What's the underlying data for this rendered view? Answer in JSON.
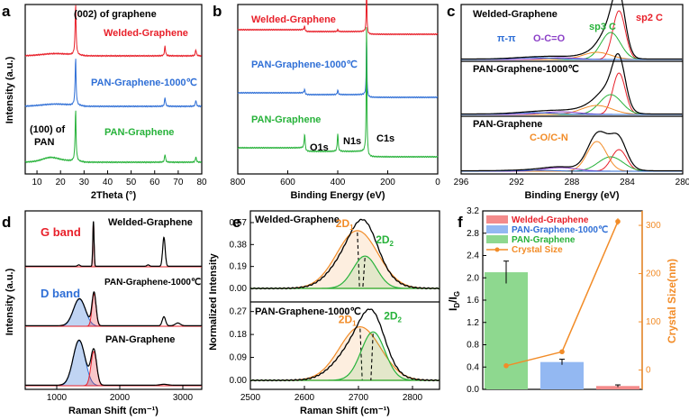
{
  "chart_data": [
    {
      "panel": "a",
      "type": "line",
      "xlabel": "2Theta (°)",
      "ylabel": "Intensity (a.u.)",
      "xlim": [
        5,
        80
      ],
      "xticks": [
        10,
        20,
        30,
        40,
        50,
        60,
        70,
        80
      ],
      "series": [
        {
          "name": "Welded-Graphene",
          "color": "#e8202a"
        },
        {
          "name": "PAN-Graphene-1000℃",
          "color": "#2f6fd6"
        },
        {
          "name": "PAN-Graphene",
          "color": "#27b23a"
        }
      ],
      "peaks_deg": [
        26.4,
        64.4,
        77.5
      ],
      "annotations": [
        "(002) of graphene",
        "(100) of",
        "PAN"
      ]
    },
    {
      "panel": "b",
      "type": "line",
      "xlabel": "Binding Energy (eV)",
      "xlim": [
        800,
        0
      ],
      "xticks": [
        800,
        600,
        400,
        200,
        0
      ],
      "series": [
        {
          "name": "Welded-Graphene",
          "color": "#e8202a"
        },
        {
          "name": "PAN-Graphene-1000℃",
          "color": "#2f6fd6"
        },
        {
          "name": "PAN-Graphene",
          "color": "#27b23a"
        }
      ],
      "peaks_ev": {
        "O1s": 532,
        "N1s": 400,
        "C1s": 284.6
      },
      "annotations": [
        "O1s",
        "N1s",
        "C1s"
      ]
    },
    {
      "panel": "c",
      "type": "line",
      "xlabel": "Binding Energy (eV)",
      "xlim": [
        296,
        280
      ],
      "xticks": [
        296,
        292,
        288,
        284,
        280
      ],
      "subpanels": [
        {
          "name": "Welded-Graphene",
          "labels": [
            "sp3 C",
            "sp2 C",
            "π-π",
            "O-C=O"
          ]
        },
        {
          "name": "PAN-Graphene-1000℃"
        },
        {
          "name": "PAN-Graphene",
          "labels": [
            "C-O/C-N"
          ]
        }
      ],
      "components_ev": {
        "sp2 C": 284.6,
        "sp3 C": 285.2,
        "C-O/C-N": 286.2,
        "O-C=O": 288.8,
        "π-π": 290.8
      },
      "colors": {
        "sp2 C": "#e8202a",
        "sp3 C": "#27b23a",
        "C-O/C-N": "#f28c28",
        "O-C=O": "#8b3fc7",
        "π-π": "#2f6fd6"
      }
    },
    {
      "panel": "d",
      "type": "line",
      "xlabel": "Raman Shift (cm⁻¹)",
      "ylabel": "Intensity (a.u.)",
      "xlim": [
        500,
        3300
      ],
      "xticks": [
        1000,
        2000,
        3000
      ],
      "series": [
        {
          "name": "Welded-Graphene",
          "G": 1582,
          "twoD": 2700
        },
        {
          "name": "PAN-Graphene-1000℃",
          "D": 1360,
          "G": 1590
        },
        {
          "name": "PAN-Graphene",
          "D": 1355,
          "G": 1585
        }
      ],
      "annotations": [
        "G band",
        "D band"
      ]
    },
    {
      "panel": "e",
      "type": "line",
      "xlabel": "Raman Shift (cm⁻¹)",
      "ylabel": "Normalized Intensity",
      "xlim": [
        2500,
        2850
      ],
      "xticks": [
        2500,
        2600,
        2700,
        2800
      ],
      "subpanels": [
        {
          "name": "Welded-Graphene",
          "yticks": [
            "0.00",
            "0.19",
            "0.38",
            "0.57"
          ],
          "ylim": [
            0,
            0.64
          ],
          "peak_max": 0.58,
          "components": [
            {
              "label": "2D",
              "sub": "1",
              "center": 2698,
              "height": 0.5,
              "color": "#f28c28"
            },
            {
              "label": "2D",
              "sub": "2",
              "center": 2712,
              "height": 0.28,
              "color": "#27b23a"
            }
          ]
        },
        {
          "name": "PAN-Graphene-1000℃",
          "yticks": [
            "0.00",
            "0.09",
            "0.18",
            "0.27"
          ],
          "ylim": [
            0,
            0.29
          ],
          "peak_max": 0.28,
          "components": [
            {
              "label": "2D",
              "sub": "1",
              "center": 2703,
              "height": 0.21,
              "color": "#f28c28"
            },
            {
              "label": "2D",
              "sub": "2",
              "center": 2727,
              "height": 0.19,
              "color": "#27b23a"
            }
          ]
        }
      ]
    },
    {
      "panel": "f",
      "type": "bar",
      "categories": [
        "Welded-Graphene",
        "PAN-Graphene-1000℃",
        "PAN-Graphene"
      ],
      "series": [
        {
          "name": "ID/IG",
          "values": [
            0.06,
            0.49,
            2.1
          ],
          "errors": [
            0.02,
            0.05,
            0.2
          ]
        },
        {
          "name": "Crystal Size",
          "values": [
            308,
            38,
            9
          ],
          "errors": [
            7,
            2,
            1
          ]
        }
      ],
      "bar_colors": [
        "#f48b8b",
        "#93b8f2",
        "#8ed88f"
      ],
      "bar_order": [
        2,
        1,
        0
      ],
      "line_color": "#f28c28",
      "ylim_left": [
        0,
        3.2
      ],
      "yticks_left": [
        "0.0",
        "0.4",
        "0.8",
        "1.2",
        "1.6",
        "2.0",
        "2.4",
        "2.8",
        "3.2"
      ],
      "ylim_right": [
        -40,
        330
      ],
      "yticks_right": [
        "0",
        "100",
        "200",
        "300"
      ],
      "ylabel_left": "ID/IG",
      "ylabel_right": "Crystal Size(nm)",
      "legend": [
        "Welded-Graphene",
        "PAN-Graphene-1000℃",
        "PAN-Graphene",
        "Crystal Size"
      ]
    }
  ],
  "labels": {
    "a": "a",
    "b": "b",
    "c": "c",
    "d": "d",
    "e": "e",
    "f": "f"
  }
}
